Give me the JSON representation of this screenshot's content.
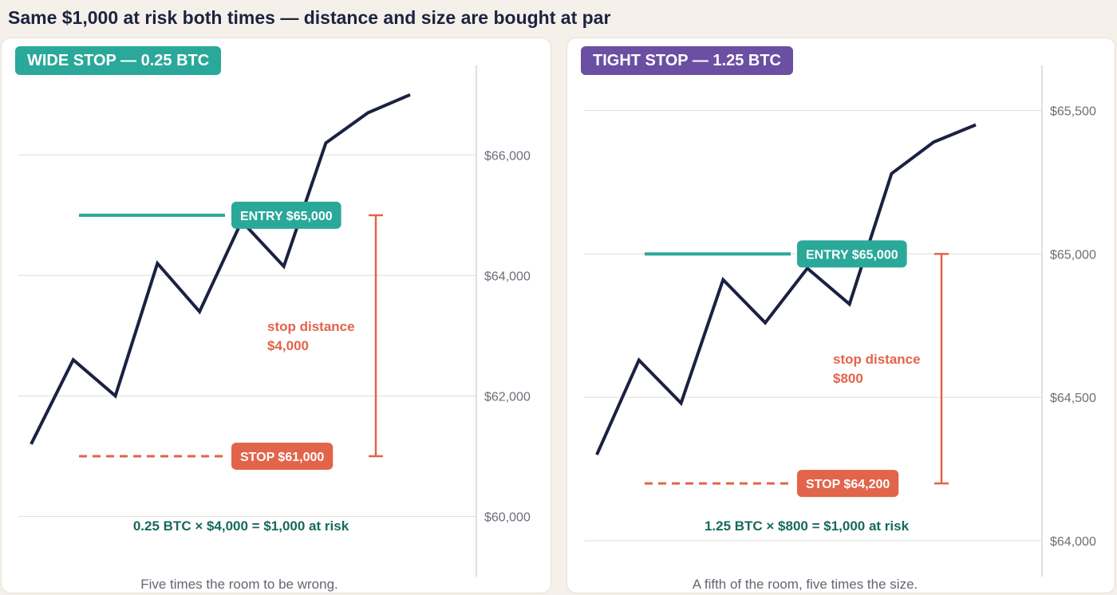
{
  "title": "Same $1,000 at risk both times — distance and size are bought at par",
  "colors": {
    "entry": "#2aa89a",
    "stop": "#e2644a",
    "price_line": "#1b2142",
    "formula": "#17695c"
  },
  "chart_data": [
    {
      "type": "line",
      "badge": "WIDE STOP — 0.25 BTC",
      "badge_color": "#2aa89a",
      "y_ticks": [
        60000,
        62000,
        64000,
        66000
      ],
      "y_tick_labels": [
        "$60,000",
        "$62,000",
        "$64,000",
        "$66,000"
      ],
      "ylim": [
        59000,
        67500
      ],
      "x": [
        0,
        1,
        2,
        3,
        4,
        5,
        6,
        7,
        8,
        9
      ],
      "values": [
        61200,
        62600,
        62000,
        64200,
        63400,
        64900,
        64150,
        66200,
        66700,
        67000
      ],
      "entry_price": 65000,
      "stop_price": 61000,
      "entry_label": "ENTRY  $65,000",
      "stop_label": "STOP  $61,000",
      "distance_label": [
        "stop distance",
        "$4,000"
      ],
      "formula": "0.25 BTC  ×  $4,000  =  $1,000 at risk",
      "caption": "Five times the room to be wrong."
    },
    {
      "type": "line",
      "badge": "TIGHT STOP — 1.25 BTC",
      "badge_color": "#6a4fa3",
      "y_ticks": [
        64000,
        64500,
        65000,
        65500
      ],
      "y_tick_labels": [
        "$64,000",
        "$64,500",
        "$65,000",
        "$65,500"
      ],
      "ylim": [
        63875,
        65660
      ],
      "x": [
        0,
        1,
        2,
        3,
        4,
        5,
        6,
        7,
        8,
        9
      ],
      "values": [
        64300,
        64630,
        64480,
        64910,
        64760,
        64950,
        64825,
        65280,
        65390,
        65450
      ],
      "entry_price": 65000,
      "stop_price": 64200,
      "entry_label": "ENTRY  $65,000",
      "stop_label": "STOP  $64,200",
      "distance_label": [
        "stop distance",
        "$800"
      ],
      "formula": "1.25 BTC  ×  $800  =  $1,000 at risk",
      "caption": "A fifth of the room, five times the size."
    }
  ]
}
